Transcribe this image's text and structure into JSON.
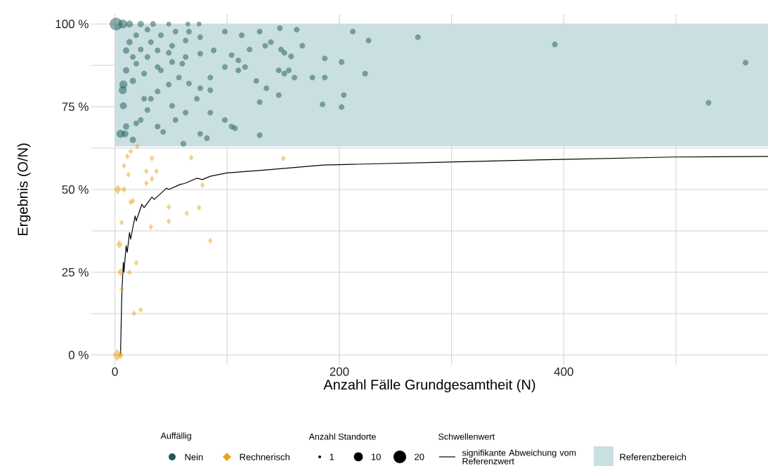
{
  "chart_data": {
    "type": "bubble",
    "xlabel": "Anzahl Fälle Grundgesamtheit (N)",
    "ylabel": "Ergebnis (O/N)",
    "legend_title": "Auffällig",
    "annotations": [
      "Anzahl Standorte",
      "Schwellenwert"
    ],
    "xlim": [
      -21,
      582
    ],
    "ylim": [
      -3,
      103
    ],
    "xticks": [
      0,
      {
        "value": 100,
        "label": null
      },
      200,
      {
        "value": 300,
        "label": null
      },
      400,
      {
        "value": 500,
        "label": null
      }
    ],
    "yticks": [
      {
        "value": 0,
        "label": "0 %"
      },
      {
        "value": 12.5,
        "label": null
      },
      {
        "value": 25,
        "label": "25 %"
      },
      {
        "value": 37.5,
        "label": null
      },
      {
        "value": 50,
        "label": "50 %"
      },
      {
        "value": 62.5,
        "label": null
      },
      {
        "value": 75,
        "label": "75 %"
      },
      {
        "value": 87.5,
        "label": null
      },
      {
        "value": 100,
        "label": "100 %"
      }
    ],
    "grid": true,
    "legend": "bottom",
    "size_legend": [
      1,
      10,
      20
    ],
    "bands": [
      {
        "axis": "y",
        "from": 63,
        "to": 100,
        "label": "Referenzbereich",
        "color": "#c9dfe1"
      }
    ],
    "series": [
      {
        "name": "Nein",
        "marker": "circle",
        "color": "#1d5b55",
        "x": [
          1,
          7,
          13,
          23,
          34,
          48,
          65,
          75,
          10,
          13,
          19,
          29,
          16,
          23,
          32,
          41,
          54,
          10,
          19,
          29,
          38,
          51,
          63,
          76,
          16,
          26,
          38,
          51,
          63,
          76,
          88,
          98,
          113,
          129,
          147,
          162,
          104,
          120,
          134,
          151,
          157,
          167,
          187,
          202,
          212,
          226,
          270,
          392,
          562,
          529,
          7.5,
          7,
          7.5,
          5,
          9,
          10,
          16,
          19,
          29,
          32,
          38,
          48,
          57,
          66,
          76,
          85,
          98,
          110,
          116,
          126,
          135,
          160,
          176,
          187,
          204,
          223,
          185,
          202,
          129,
          104,
          107,
          129,
          82,
          61,
          43,
          54,
          63,
          51,
          73,
          85,
          98,
          85,
          60,
          41,
          26,
          23,
          38,
          76,
          110,
          146,
          146,
          151,
          155,
          139,
          148,
          48,
          66
        ],
        "values": [
          100,
          100,
          100,
          100,
          100,
          100,
          100,
          100,
          92,
          94.5,
          96.6,
          98.3,
          90,
          92.3,
          94.5,
          96.6,
          97.7,
          86,
          88,
          90,
          92,
          93.4,
          95,
          96,
          82.8,
          85,
          87,
          88.5,
          90,
          91,
          92,
          97.7,
          96.6,
          97.7,
          98.7,
          98.3,
          90.6,
          92.3,
          93.4,
          91.3,
          90.2,
          93.4,
          89.6,
          88.5,
          97.7,
          95,
          96,
          93.8,
          88.3,
          76.2,
          81.7,
          80,
          75.3,
          66.8,
          66.8,
          69,
          65,
          70,
          74,
          77.4,
          79.6,
          81.7,
          83.8,
          82,
          80.6,
          80,
          87,
          86,
          87,
          82.8,
          80.6,
          83.8,
          83.8,
          83.8,
          78.5,
          85,
          75.7,
          74.9,
          76.4,
          69,
          68.5,
          66.4,
          65.5,
          63.8,
          67.4,
          71,
          73.2,
          75.3,
          77.4,
          73.2,
          71,
          83.8,
          88,
          86,
          77.4,
          71,
          69,
          66.8,
          89,
          86,
          78.5,
          85,
          86,
          94.5,
          92.3,
          91.3,
          97.7
        ],
        "sizes": [
          20,
          10,
          6,
          5,
          4,
          3,
          3,
          3,
          5,
          5,
          4,
          4,
          4,
          4,
          4,
          4,
          4,
          5,
          4,
          4,
          4,
          4,
          4,
          4,
          5,
          4,
          4,
          4,
          4,
          4,
          4,
          4,
          4,
          4,
          4,
          4,
          4,
          4,
          4,
          4,
          4,
          4,
          4,
          4,
          4,
          4,
          4,
          4,
          4,
          4,
          8,
          8,
          6,
          8,
          6,
          5,
          5,
          4,
          4,
          4,
          4,
          4,
          4,
          4,
          4,
          4,
          4,
          4,
          4,
          4,
          4,
          4,
          4,
          4,
          4,
          4,
          4,
          4,
          4,
          4,
          4,
          4,
          4,
          4,
          4,
          4,
          4,
          4,
          4,
          4,
          4,
          4,
          4,
          4,
          4,
          4,
          4,
          4,
          4,
          4,
          4,
          4,
          4,
          4,
          4,
          4,
          4
        ]
      },
      {
        "name": "Rechnerisch",
        "marker": "diamond",
        "color": "#e8a317",
        "x": [
          20,
          14,
          11,
          33,
          68,
          150,
          8,
          12,
          28,
          37,
          33,
          28,
          78,
          2.5,
          8,
          14,
          16,
          48,
          75,
          64,
          48,
          6,
          32,
          85,
          4,
          19,
          5,
          13,
          6,
          17,
          23,
          2,
          5
        ],
        "values": [
          63,
          61.5,
          60,
          59.4,
          59.6,
          59.4,
          57.2,
          54.5,
          55.5,
          55.5,
          53.2,
          51.9,
          51.3,
          50,
          50,
          46.2,
          46.6,
          44.7,
          44.5,
          42.8,
          40.4,
          40,
          38.7,
          34.5,
          33.4,
          27.9,
          25,
          25,
          20,
          12.6,
          13.6,
          0,
          0
        ],
        "sizes": [
          3,
          3,
          3,
          3,
          3,
          3,
          3,
          3,
          3,
          3,
          3,
          3,
          3,
          8,
          4,
          3,
          3,
          3,
          3,
          3,
          3,
          3,
          3,
          3,
          6,
          3,
          6,
          3,
          3,
          3,
          3,
          12,
          6
        ]
      },
      {
        "name": "signifikante Abweichung vom Referenzwert",
        "type": "line",
        "color": "#000000",
        "x": [
          5,
          6,
          6.5,
          7.5,
          8,
          10,
          11,
          13,
          14,
          18,
          19,
          24,
          26,
          33,
          35,
          46,
          48,
          58,
          62,
          73,
          78,
          85,
          100,
          131,
          186,
          200,
          298,
          399,
          498,
          582
        ],
        "values": [
          0,
          16.4,
          21,
          28,
          25,
          33,
          31,
          37,
          35,
          42,
          40.5,
          45.5,
          44.5,
          47.7,
          47,
          50.4,
          50,
          51.5,
          51.8,
          53.4,
          53,
          54,
          55,
          55.8,
          57.4,
          57.5,
          58.3,
          59.1,
          59.8,
          60
        ]
      }
    ]
  }
}
